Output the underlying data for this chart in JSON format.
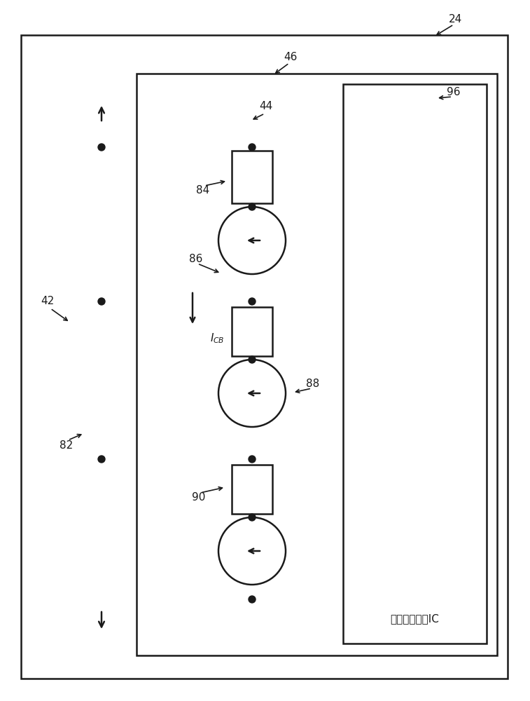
{
  "bg_color": "#ffffff",
  "line_color": "#1a1a1a",
  "lw": 1.8,
  "fig_w": 7.57,
  "fig_h": 10.0,
  "ic_text": "电池单元监测IC"
}
